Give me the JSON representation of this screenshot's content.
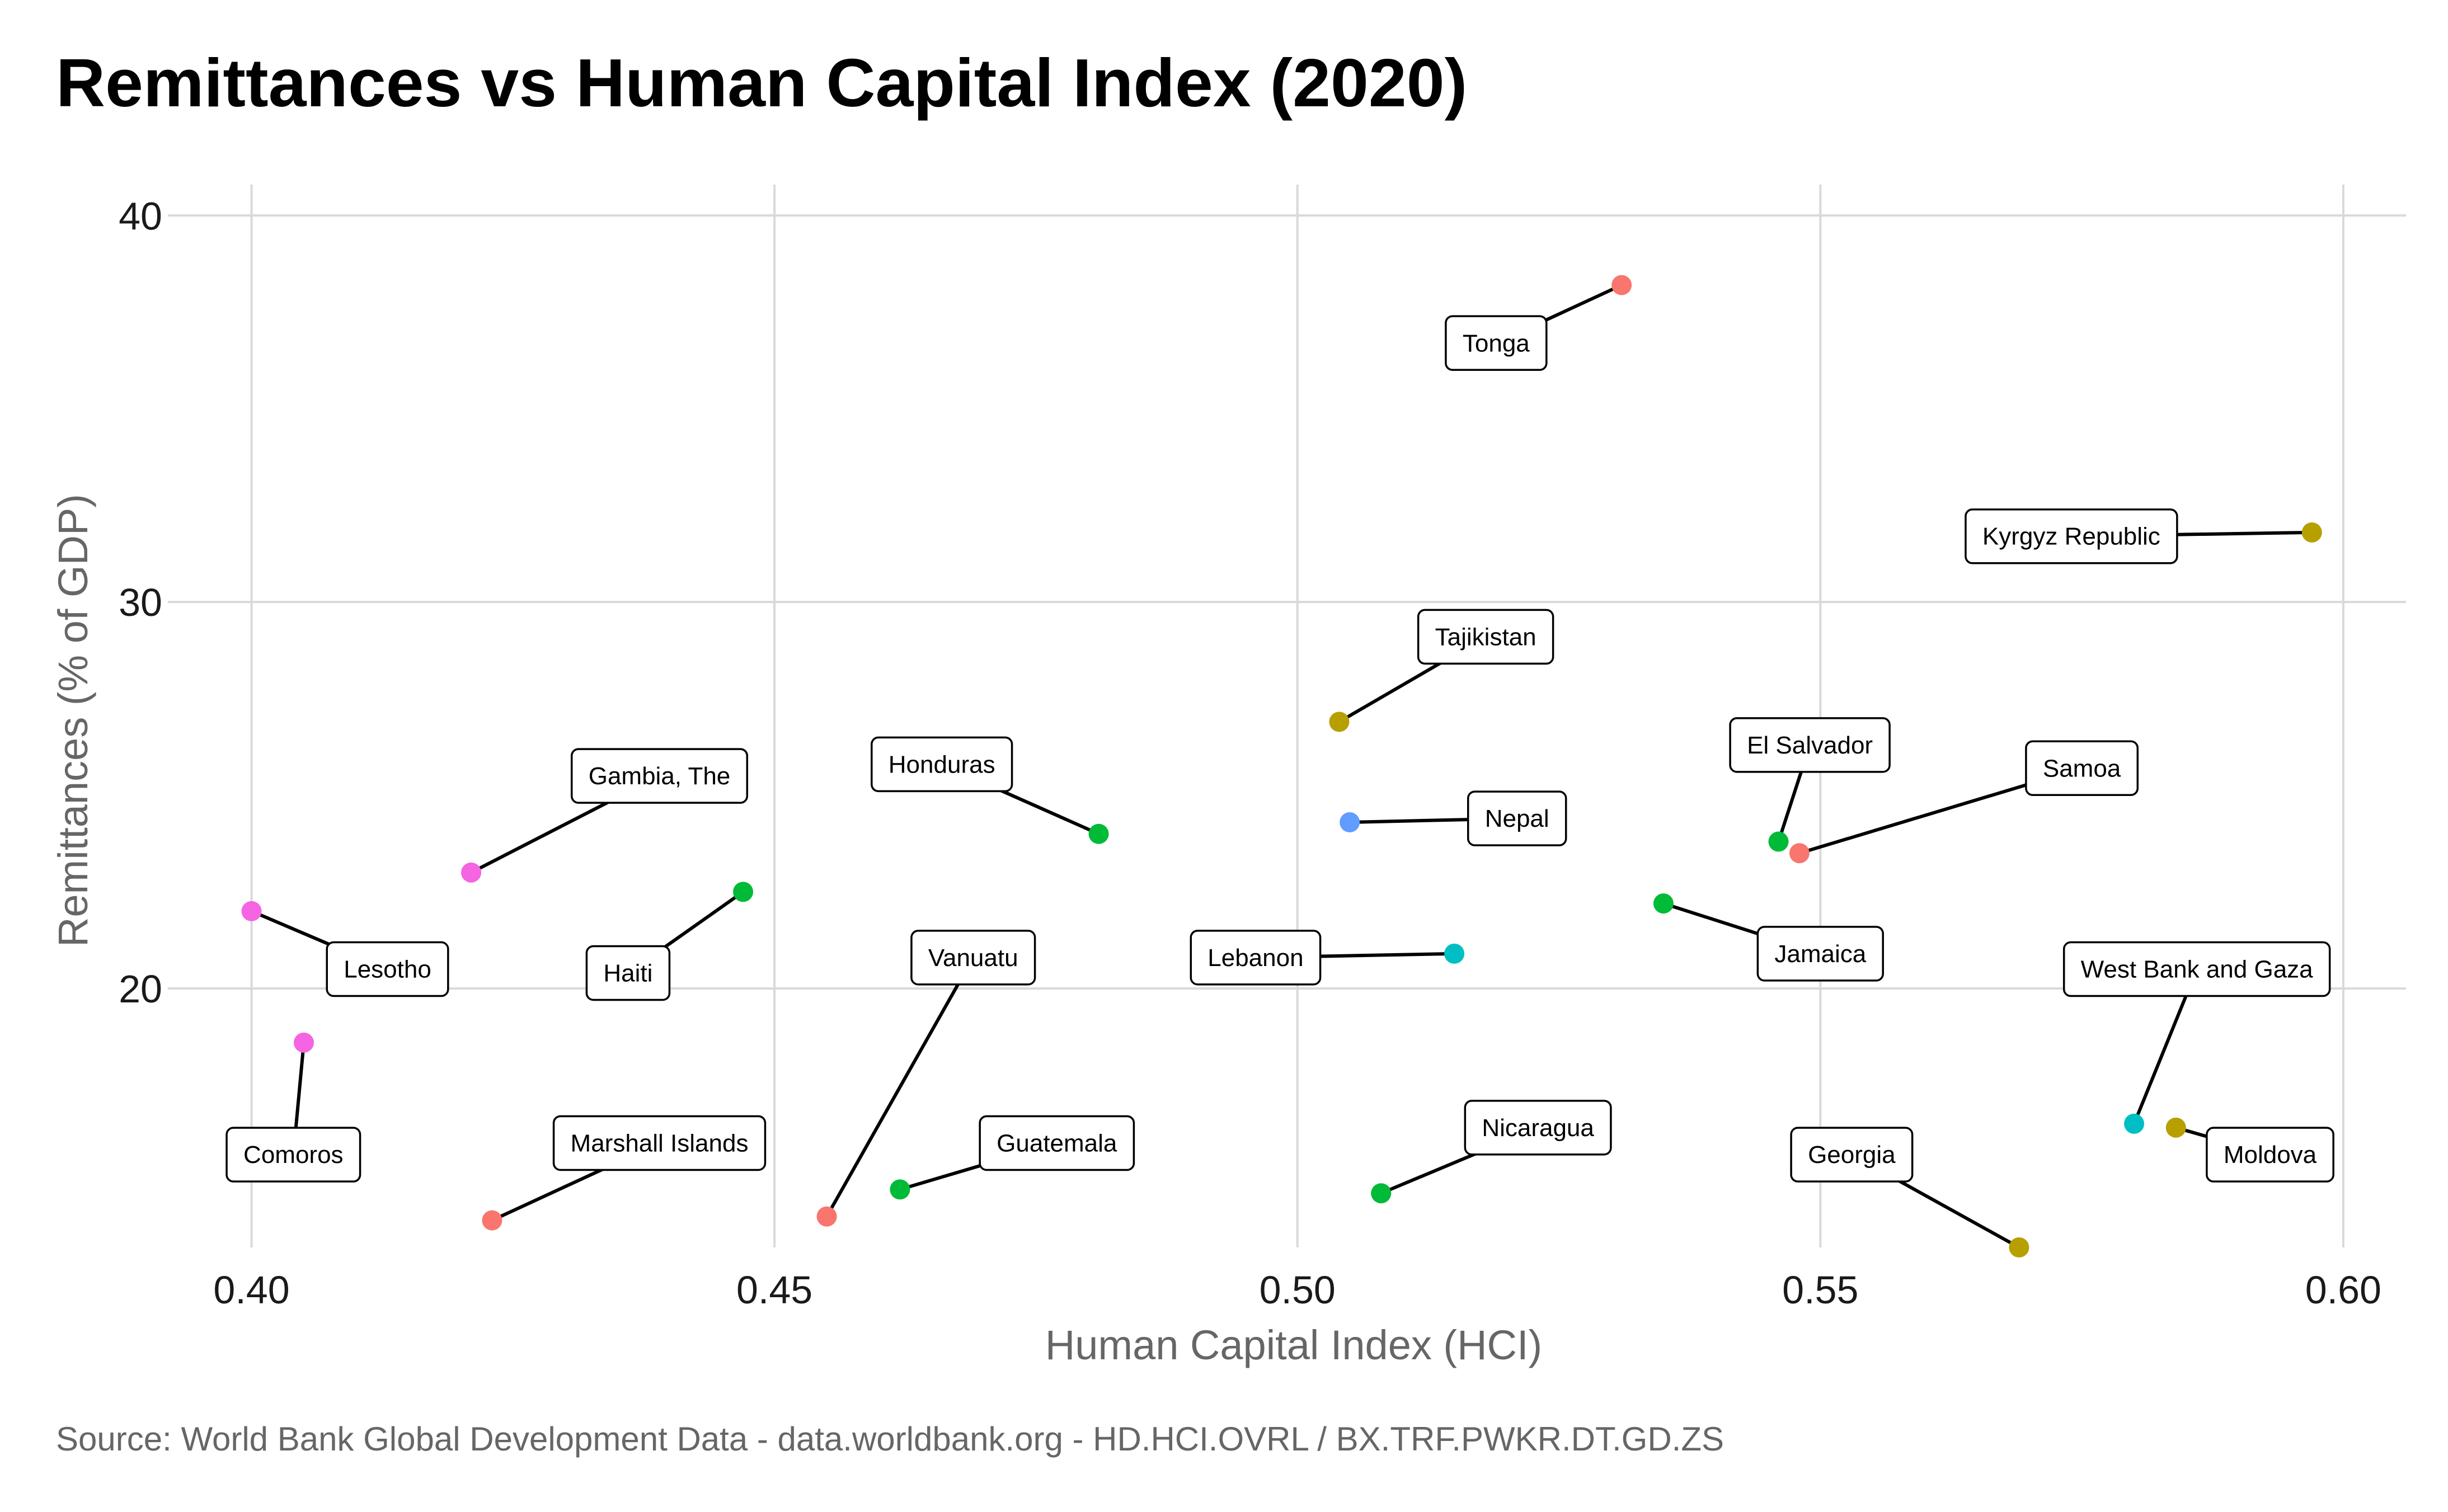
{
  "chart_data": {
    "type": "scatter",
    "title": "Remittances vs Human Capital Index (2020)",
    "xlabel": "Human Capital Index (HCI)",
    "ylabel": "Remittances (% of GDP)",
    "caption": "Source: World Bank Global Development Data - data.worldbank.org - HD.HCI.OVRL / BX.TRF.PWKR.DT.GD.ZS",
    "xlim": [
      0.392,
      0.606
    ],
    "ylim": [
      13.3,
      40.8
    ],
    "x_ticks": [
      0.4,
      0.45,
      0.5,
      0.55,
      0.6
    ],
    "x_tick_labels": [
      "0.40",
      "0.45",
      "0.50",
      "0.55",
      "0.60"
    ],
    "y_ticks": [
      20,
      30,
      40
    ],
    "y_tick_labels": [
      "20",
      "30",
      "40"
    ],
    "grid": true,
    "legend": "none",
    "points": [
      {
        "label": "Tonga",
        "x": 0.531,
        "y": 38.2,
        "color": "#F8766D",
        "lx": 0.519,
        "ly": 36.7
      },
      {
        "label": "Kyrgyz Republic",
        "x": 0.597,
        "y": 31.8,
        "color": "#B79F00",
        "lx": 0.574,
        "ly": 31.7
      },
      {
        "label": "Tajikistan",
        "x": 0.504,
        "y": 26.9,
        "color": "#B79F00",
        "lx": 0.518,
        "ly": 29.1
      },
      {
        "label": "El Salvador",
        "x": 0.546,
        "y": 23.8,
        "color": "#00BA38",
        "lx": 0.549,
        "ly": 26.3
      },
      {
        "label": "Samoa",
        "x": 0.548,
        "y": 23.5,
        "color": "#F8766D",
        "lx": 0.575,
        "ly": 25.7
      },
      {
        "label": "Honduras",
        "x": 0.481,
        "y": 24.0,
        "color": "#00BA38",
        "lx": 0.466,
        "ly": 25.8
      },
      {
        "label": "Gambia, The",
        "x": 0.421,
        "y": 23.0,
        "color": "#F564E3",
        "lx": 0.439,
        "ly": 25.5
      },
      {
        "label": "Nepal",
        "x": 0.505,
        "y": 24.3,
        "color": "#619CFF",
        "lx": 0.521,
        "ly": 24.4
      },
      {
        "label": "Haiti",
        "x": 0.447,
        "y": 22.5,
        "color": "#00BA38",
        "lx": 0.436,
        "ly": 20.4
      },
      {
        "label": "Jamaica",
        "x": 0.535,
        "y": 22.2,
        "color": "#00BA38",
        "lx": 0.55,
        "ly": 20.9
      },
      {
        "label": "Lesotho",
        "x": 0.4,
        "y": 22.0,
        "color": "#F564E3",
        "lx": 0.413,
        "ly": 20.5
      },
      {
        "label": "Lebanon",
        "x": 0.515,
        "y": 20.9,
        "color": "#00BFC4",
        "lx": 0.496,
        "ly": 20.8
      },
      {
        "label": "Vanuatu",
        "x": 0.455,
        "y": 14.1,
        "color": "#F8766D",
        "lx": 0.469,
        "ly": 20.8
      },
      {
        "label": "West Bank and Gaza",
        "x": 0.58,
        "y": 16.5,
        "color": "#00BFC4",
        "lx": 0.586,
        "ly": 20.5
      },
      {
        "label": "Comoros",
        "x": 0.405,
        "y": 18.6,
        "color": "#F564E3",
        "lx": 0.404,
        "ly": 15.7
      },
      {
        "label": "Marshall Islands",
        "x": 0.423,
        "y": 14.0,
        "color": "#F8766D",
        "lx": 0.439,
        "ly": 16.0
      },
      {
        "label": "Guatemala",
        "x": 0.462,
        "y": 14.8,
        "color": "#00BA38",
        "lx": 0.477,
        "ly": 16.0
      },
      {
        "label": "Nicaragua",
        "x": 0.508,
        "y": 14.7,
        "color": "#00BA38",
        "lx": 0.523,
        "ly": 16.4
      },
      {
        "label": "Moldova",
        "x": 0.584,
        "y": 16.4,
        "color": "#B79F00",
        "lx": 0.593,
        "ly": 15.7
      },
      {
        "label": "Georgia",
        "x": 0.569,
        "y": 13.3,
        "color": "#B79F00",
        "lx": 0.553,
        "ly": 15.7
      }
    ]
  }
}
